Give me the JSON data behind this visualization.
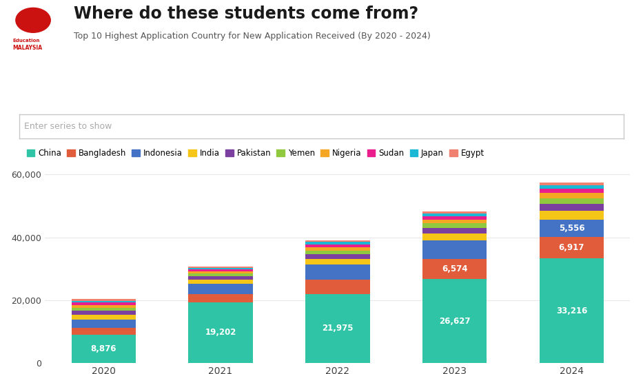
{
  "title": "Where do these students come from?",
  "subtitle": "Top 10 Highest Application Country for New Application Received (By 2020 - 2024)",
  "search_placeholder": "Enter series to show",
  "years": [
    2020,
    2021,
    2022,
    2023,
    2024
  ],
  "countries": [
    "China",
    "Bangladesh",
    "Indonesia",
    "India",
    "Pakistan",
    "Yemen",
    "Nigeria",
    "Sudan",
    "Japan",
    "Egypt"
  ],
  "colors": [
    "#2ec4a5",
    "#e05c3a",
    "#4472c4",
    "#f5c518",
    "#7b3fa0",
    "#90c93f",
    "#f5a623",
    "#e91e8c",
    "#1ab8d4",
    "#f08070"
  ],
  "data": {
    "China": [
      8876,
      19202,
      21975,
      26627,
      33216
    ],
    "Bangladesh": [
      2200,
      2800,
      4500,
      6574,
      6917
    ],
    "Indonesia": [
      2800,
      3200,
      4800,
      5800,
      5556
    ],
    "India": [
      1500,
      1200,
      1800,
      2200,
      2800
    ],
    "Pakistan": [
      1200,
      1100,
      1500,
      1800,
      2200
    ],
    "Yemen": [
      1000,
      900,
      1200,
      1400,
      1800
    ],
    "Nigeria": [
      900,
      800,
      1100,
      1300,
      1600
    ],
    "Sudan": [
      700,
      600,
      900,
      1100,
      1400
    ],
    "Japan": [
      600,
      500,
      700,
      800,
      1000
    ],
    "Egypt": [
      500,
      450,
      600,
      700,
      900
    ]
  },
  "ylim": [
    0,
    62000
  ],
  "yticks": [
    0,
    20000,
    40000,
    60000
  ],
  "background_color": "#ffffff",
  "grid_color": "#e8e8e8",
  "bar_width": 0.55,
  "logo_text1": "Education",
  "logo_text2": "MALAYSIA"
}
